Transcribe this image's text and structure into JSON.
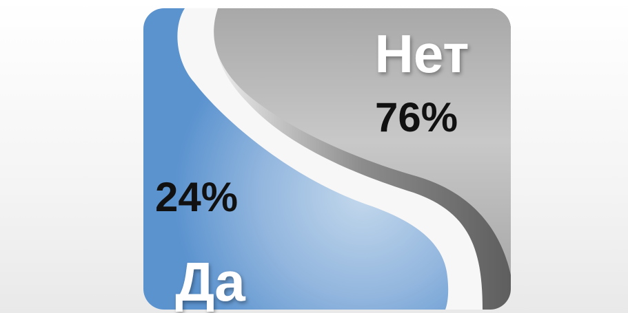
{
  "chart_data": {
    "type": "pie",
    "title": "",
    "categories": [
      "Да",
      "Нет"
    ],
    "values": [
      24,
      76
    ],
    "value_labels": [
      "24%",
      "76%"
    ],
    "colors": {
      "yes": "#5b93cf",
      "no": "#b3b3b3"
    }
  }
}
